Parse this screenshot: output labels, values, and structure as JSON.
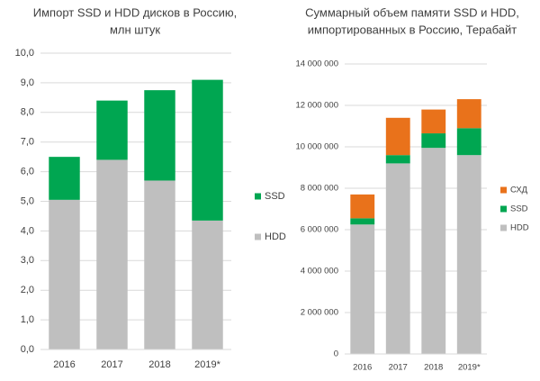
{
  "chart_data": [
    {
      "type": "stacked_bar",
      "title": [
        "Импорт SSD и HDD дисков в Россию,",
        "млн штук"
      ],
      "categories": [
        "2016",
        "2017",
        "2018",
        "2019*"
      ],
      "series": [
        {
          "name": "HDD",
          "color": "#bfbfbf",
          "values": [
            5.05,
            6.4,
            5.7,
            4.35
          ]
        },
        {
          "name": "SSD",
          "color": "#00a651",
          "values": [
            1.45,
            2.0,
            3.05,
            4.75
          ]
        }
      ],
      "ylim": [
        0,
        10
      ],
      "yticks": [
        {
          "value": 0,
          "label": "0,0"
        },
        {
          "value": 1,
          "label": "1,0"
        },
        {
          "value": 2,
          "label": "2,0"
        },
        {
          "value": 3,
          "label": "3,0"
        },
        {
          "value": 4,
          "label": "4,0"
        },
        {
          "value": 5,
          "label": "5,0"
        },
        {
          "value": 6,
          "label": "6,0"
        },
        {
          "value": 7,
          "label": "7,0"
        },
        {
          "value": 8,
          "label": "8,0"
        },
        {
          "value": 9,
          "label": "9,0"
        },
        {
          "value": 10,
          "label": "10,0"
        }
      ],
      "grid": true,
      "legend": "right"
    },
    {
      "type": "stacked_bar",
      "title": [
        "Суммарный объем памяти SSD и HDD,",
        "импортированных в Россию, Терабайт"
      ],
      "categories": [
        "2016",
        "2017",
        "2018",
        "2019*"
      ],
      "series": [
        {
          "name": "HDD",
          "color": "#bfbfbf",
          "values": [
            6250000,
            9200000,
            9950000,
            9600000
          ]
        },
        {
          "name": "SSD",
          "color": "#00a651",
          "values": [
            300000,
            400000,
            700000,
            1300000
          ]
        },
        {
          "name": "СХД",
          "color": "#e9721b",
          "values": [
            1150000,
            1800000,
            1150000,
            1400000
          ]
        }
      ],
      "ylim": [
        0,
        14000000
      ],
      "yticks": [
        0,
        {
          "value": 2000000,
          "label": "2 000 000"
        },
        {
          "value": 4000000,
          "label": "4 000 000"
        },
        {
          "value": 6000000,
          "label": "6 000 000"
        },
        {
          "value": 8000000,
          "label": "8 000 000"
        },
        {
          "value": 10000000,
          "label": "10 000 000"
        },
        {
          "value": 12000000,
          "label": "12 000 000"
        },
        {
          "value": 14000000,
          "label": "14 000 000"
        }
      ],
      "grid": true,
      "legend": "right"
    }
  ]
}
